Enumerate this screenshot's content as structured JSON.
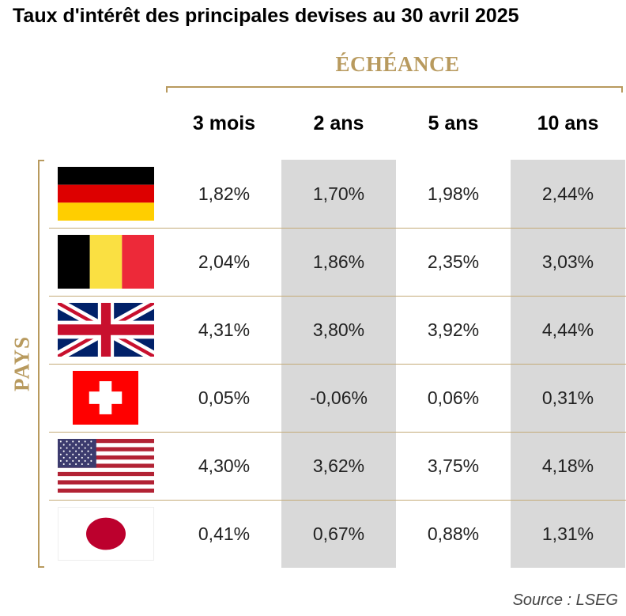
{
  "title": "Taux d'intérêt des principales devises au 30 avril 2025",
  "col_group_label": "ÉCHÉANCE",
  "row_group_label": "PAYS",
  "source": "Source : LSEG",
  "colors": {
    "accent": "#b89a5e",
    "shade": "#d9d9d9"
  },
  "chart_data": {
    "type": "table",
    "title": "Taux d'intérêt des principales devises au 30 avril 2025",
    "columns": [
      "3 mois",
      "2 ans",
      "5 ans",
      "10 ans"
    ],
    "rows": [
      {
        "flag_icon": "germany-flag-icon",
        "values": [
          "1,82%",
          "1,70%",
          "1,98%",
          "2,44%"
        ]
      },
      {
        "flag_icon": "belgium-flag-icon",
        "values": [
          "2,04%",
          "1,86%",
          "2,35%",
          "3,03%"
        ]
      },
      {
        "flag_icon": "united-kingdom-flag-icon",
        "values": [
          "4,31%",
          "3,80%",
          "3,92%",
          "4,44%"
        ]
      },
      {
        "flag_icon": "switzerland-flag-icon",
        "values": [
          "0,05%",
          "-0,06%",
          "0,06%",
          "0,31%"
        ]
      },
      {
        "flag_icon": "united-states-flag-icon",
        "values": [
          "4,30%",
          "3,62%",
          "3,75%",
          "4,18%"
        ]
      },
      {
        "flag_icon": "japan-flag-icon",
        "values": [
          "0,41%",
          "0,67%",
          "0,88%",
          "1,31%"
        ]
      }
    ]
  }
}
